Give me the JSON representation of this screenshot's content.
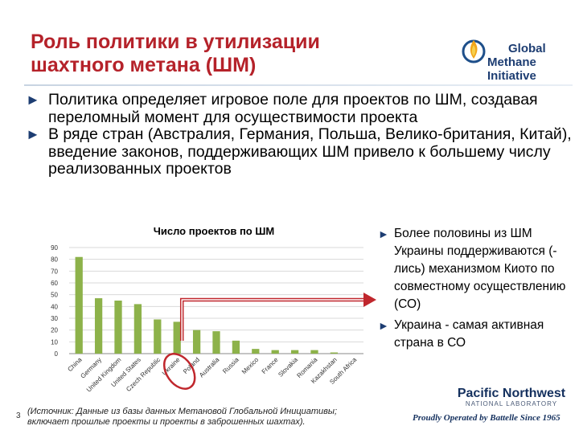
{
  "slide": {
    "title_lines": [
      "Роль политики в утилизации",
      "шахтного метана (ШМ)"
    ],
    "number": "3"
  },
  "logo": {
    "lines": [
      "Global",
      "Methane Initiative"
    ],
    "flame_colors": [
      "#1e4f8a",
      "#f2a51a",
      "#f6d04d"
    ]
  },
  "bullets": [
    "Политика определяет игровое поле для проектов по ШМ, создавая переломный момент для осуществимости проекта",
    "В ряде стран (Австралия, Германия, Польша, Велико-британия, Китай), введение законов, поддерживающих ШМ привело к большему числу реализованных проектов"
  ],
  "bullet_marker": "►",
  "right_bullets": [
    "Более половины из ШМ Украины поддерживаются (-лись) механизмом Киото по совместному осуществлению (СО)",
    "Украина - самая активная страна в СО"
  ],
  "chart_data": {
    "type": "bar",
    "title": "Число проектов по ШМ",
    "categories": [
      "China",
      "Germany",
      "United Kingdom",
      "United States",
      "Czech Republic",
      "Ukraine",
      "Poland",
      "Australia",
      "Russia",
      "Mexico",
      "France",
      "Slovakia",
      "Romania",
      "Kazakhstan",
      "South Africa"
    ],
    "values": [
      82,
      47,
      45,
      42,
      29,
      27,
      20,
      19,
      11,
      4,
      3,
      3,
      3,
      1,
      0
    ],
    "ylim": [
      0,
      90
    ],
    "yticks": [
      0,
      10,
      20,
      30,
      40,
      50,
      60,
      70,
      80,
      90
    ],
    "grid": true,
    "bar_color": "#8db24a",
    "highlight_category": "Ukraine",
    "highlight_color": "#c0272d"
  },
  "source": [
    "(Источник: Данные из базы данных Метановой Глобальной Инициативы;",
    "включает прошлые проекты и проекты в заброшенных шахтах)."
  ],
  "footer": {
    "org_name": "Pacific Northwest",
    "org_sub": "NATIONAL LABORATORY",
    "tagline": "Proudly Operated by Battelle Since 1965"
  }
}
